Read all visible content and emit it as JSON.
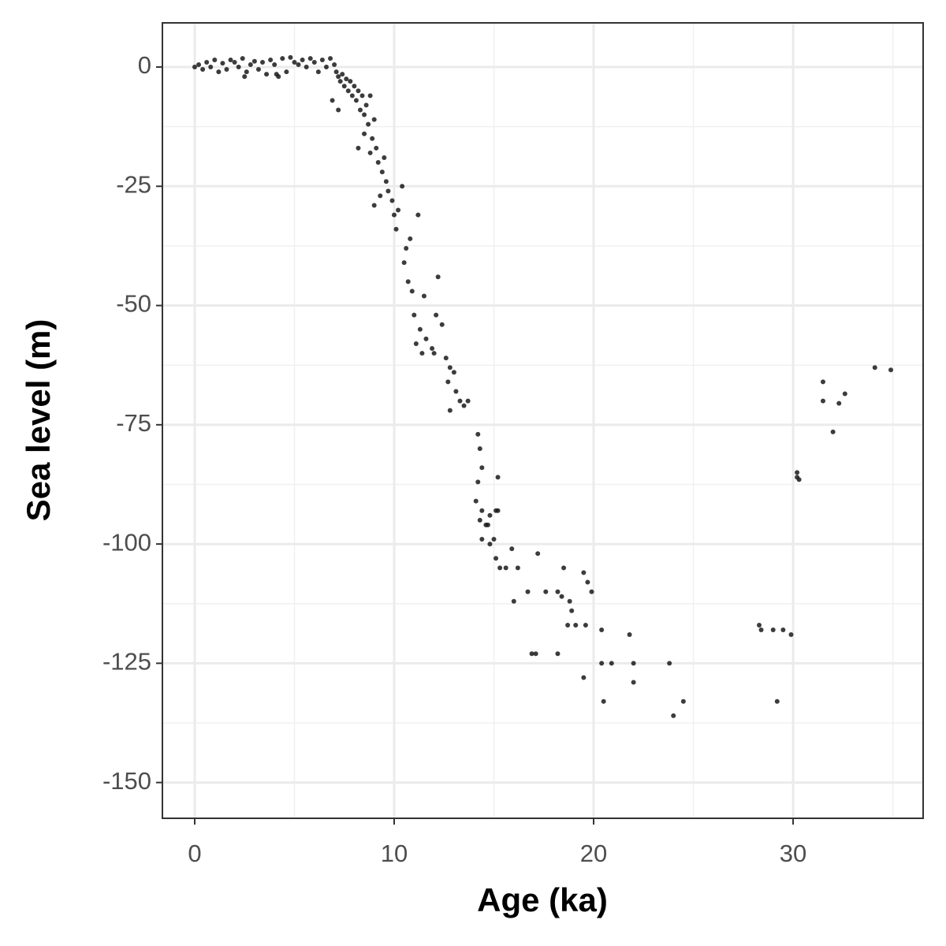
{
  "chart_data": {
    "type": "scatter",
    "x_label": "Age (ka)",
    "y_label": "Sea level (m)",
    "xlim": [
      -1.62,
      36.52
    ],
    "ylim": [
      -157.5,
      9.26
    ],
    "xticks": [
      0,
      10,
      20,
      30
    ],
    "yticks": [
      0,
      -25,
      -50,
      -75,
      -100,
      -125,
      -150
    ],
    "x_minor_ticks": [
      5,
      15,
      25,
      35
    ],
    "y_minor_ticks": [
      -12.5,
      -37.5,
      -62.5,
      -87.5,
      -112.5,
      -137.5
    ],
    "grid": true,
    "color": "#1a1a1a",
    "x": [
      0,
      0.2,
      0.4,
      0.6,
      0.8,
      1,
      1.2,
      1.4,
      1.6,
      1.8,
      2,
      2.2,
      2.4,
      2.6,
      2.8,
      3,
      3.2,
      3.4,
      3.6,
      3.8,
      4,
      4.2,
      4.4,
      4.6,
      4.8,
      5,
      5.2,
      5.4,
      5.6,
      5.8,
      6,
      6.2,
      6.4,
      6.6,
      6.8,
      7,
      7.1,
      7.2,
      7.3,
      7.4,
      7.5,
      7.6,
      7.7,
      7.8,
      7.9,
      8,
      8.1,
      8.2,
      8.3,
      8.4,
      8.5,
      8.6,
      8.7,
      8.8,
      8.9,
      9,
      6.9,
      7.2,
      2.5,
      4.1,
      8.2,
      8.5,
      8.8,
      9.1,
      9.2,
      9.4,
      9.5,
      9.6,
      9.3,
      9.0,
      9.7,
      9.9,
      10,
      10.1,
      10.2,
      10.4,
      10.6,
      10.5,
      10.8,
      10.7,
      11.2,
      10.9,
      11,
      11.3,
      11.5,
      11.1,
      11.6,
      11.9,
      12.1,
      12.2,
      12.4,
      11.4,
      12,
      12.6,
      12.8,
      13,
      12.7,
      13.1,
      13.3,
      12.8,
      13.5,
      13.7,
      14.2,
      14.3,
      14.4,
      14.2,
      14.1,
      14.4,
      14.3,
      14.6,
      14.8,
      15.1,
      14.4,
      14.8,
      15.1,
      15.0,
      15.3,
      15.6,
      15.9,
      16.2,
      16,
      16.7,
      17.2,
      17.6,
      18.2,
      18.4,
      18.5,
      18.8,
      18.9,
      19.1,
      19.5,
      19.7,
      19.9,
      19.6,
      18.7,
      16.9,
      17.1,
      18.2,
      19.5,
      20.4,
      20.4,
      20.9,
      20.5,
      21.8,
      22,
      22,
      23.8,
      24,
      24.5,
      28.3,
      28.4,
      29,
      29.5,
      29.9,
      29.2,
      30.2,
      30.2,
      30.3,
      31.5,
      31.5,
      32,
      32.3,
      32.6,
      34.1,
      34.9,
      15.2,
      15.2,
      14.7
    ],
    "values": [
      0,
      0.5,
      -0.5,
      1,
      0,
      1.5,
      -1,
      0.8,
      -0.5,
      1.5,
      1,
      0,
      1.8,
      -1,
      0.5,
      1.2,
      -0.5,
      1,
      -1.5,
      1.5,
      0.5,
      -2,
      1.8,
      -1,
      2,
      1,
      0.5,
      1.5,
      0,
      1.8,
      1,
      -1,
      1.5,
      0,
      1.8,
      0.5,
      -1,
      -2,
      -3,
      -1.5,
      -4,
      -2.5,
      -5,
      -3,
      -6,
      -4,
      -7,
      -5,
      -9,
      -6,
      -10,
      -8,
      -12,
      -6,
      -15,
      -11,
      -7,
      -9,
      -2,
      -1.5,
      -17,
      -14,
      -18,
      -17,
      -20,
      -22,
      -19,
      -24,
      -27,
      -29,
      -26,
      -28,
      -31,
      -34,
      -30,
      -25,
      -38,
      -41,
      -36,
      -45,
      -31,
      -47,
      -52,
      -55,
      -48,
      -58,
      -57,
      -59,
      -52,
      -44,
      -54,
      -60,
      -60,
      -61,
      -63,
      -64,
      -66,
      -68,
      -70,
      -72,
      -71,
      -70,
      -77,
      -80,
      -84,
      -87,
      -91,
      -93,
      -95,
      -96,
      -94,
      -93,
      -99,
      -100,
      -103,
      -99,
      -105,
      -105,
      -101,
      -105,
      -112,
      -110,
      -102,
      -110,
      -110,
      -111,
      -105,
      -112,
      -114,
      -117,
      -106,
      -108,
      -110,
      -117,
      -117,
      -123,
      -123,
      -123,
      -128,
      -118,
      -125,
      -125,
      -133,
      -119,
      -125,
      -129,
      -125,
      -136,
      -133,
      -117,
      -118,
      -118,
      -118,
      -119,
      -133,
      -86,
      -85,
      -86.5,
      -66,
      -70,
      -76.5,
      -70.5,
      -68.5,
      -63,
      -63.5,
      -86,
      -93,
      -96
    ]
  }
}
